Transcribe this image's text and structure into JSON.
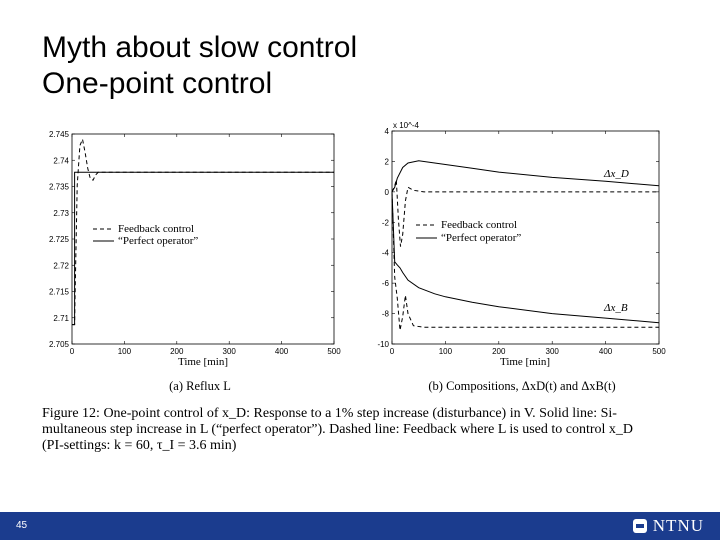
{
  "slide": {
    "title_line1": "Myth about slow control",
    "title_line2": "One-point control",
    "page_number": "45",
    "logo_text": "NTNU"
  },
  "figure": {
    "caption_line1": "Figure 12:  One-point control of x_D:  Response to a 1% step increase (disturbance) in V.  Solid line:  Si-",
    "caption_line2": "multaneous step increase in L (“perfect operator”).  Dashed line: Feedback where L is used to control x_D",
    "caption_line3": "(PI-settings: k = 60, τ_I = 3.6 min)"
  },
  "chart_data": [
    {
      "type": "line",
      "subtitle": "(a) Reflux L",
      "xlabel": "Time [min]",
      "ylabel": "",
      "xlim": [
        0,
        500
      ],
      "ylim": [
        2.705,
        2.745
      ],
      "xticks": [
        "0",
        "100",
        "200",
        "300",
        "400",
        "500"
      ],
      "yticks": [
        "2.705",
        "2.71",
        "2.715",
        "2.72",
        "2.725",
        "2.73",
        "2.735",
        "2.74",
        "2.745"
      ],
      "legend": [
        "Feedback control",
        "“Perfect operator”"
      ],
      "annotations": [],
      "series": [
        {
          "name": "Feedback control",
          "style": "dashed",
          "x": [
            0,
            5,
            5.5,
            10,
            15,
            20,
            25,
            30,
            35,
            40,
            45,
            50,
            60,
            80,
            100,
            500
          ],
          "y": [
            2.7087,
            2.7087,
            2.7125,
            2.7352,
            2.7428,
            2.744,
            2.7415,
            2.7385,
            2.7365,
            2.7362,
            2.7372,
            2.7377,
            2.7377,
            2.7377,
            2.7377,
            2.7377
          ]
        },
        {
          "name": "“Perfect operator”",
          "style": "solid",
          "x": [
            0,
            5,
            5.01,
            500
          ],
          "y": [
            2.7087,
            2.7087,
            2.7377,
            2.7377
          ]
        }
      ]
    },
    {
      "type": "line",
      "subtitle": "(b) Compositions, ΔxD(t) and ΔxB(t)",
      "xlabel": "Time [min]",
      "ylabel": "",
      "multiplier": "x 10^-4",
      "xlim": [
        0,
        500
      ],
      "ylim": [
        -10,
        4
      ],
      "xticks": [
        "0",
        "100",
        "200",
        "300",
        "400",
        "500"
      ],
      "yticks": [
        "4",
        "2",
        "0",
        "-2",
        "-4",
        "-6",
        "-8",
        "-10"
      ],
      "legend": [
        "Feedback control",
        "“Perfect operator”"
      ],
      "annotations": [
        "Δx_D",
        "Δx_B"
      ],
      "series": [
        {
          "name": "Δx_D perfect",
          "style": "solid",
          "x": [
            0,
            5,
            10,
            20,
            30,
            50,
            80,
            100,
            150,
            200,
            300,
            400,
            500
          ],
          "y": [
            0,
            0.3,
            0.9,
            1.6,
            1.9,
            2.05,
            1.9,
            1.8,
            1.55,
            1.3,
            0.95,
            0.7,
            0.4
          ]
        },
        {
          "name": "Δx_D feedback",
          "style": "dashed",
          "x": [
            0,
            5,
            8,
            12,
            16,
            20,
            25,
            30,
            40,
            60,
            100,
            500
          ],
          "y": [
            0,
            0.4,
            0.8,
            -1.8,
            -3.6,
            -2.8,
            -0.6,
            0.3,
            0.1,
            0,
            0,
            0
          ]
        },
        {
          "name": "Δx_B perfect",
          "style": "solid",
          "x": [
            0,
            5,
            10,
            15,
            20,
            30,
            50,
            80,
            100,
            150,
            200,
            300,
            400,
            500
          ],
          "y": [
            0,
            -4.6,
            -4.8,
            -5.0,
            -5.3,
            -5.8,
            -6.3,
            -6.7,
            -6.9,
            -7.25,
            -7.55,
            -8.0,
            -8.3,
            -8.6
          ]
        },
        {
          "name": "Δx_B feedback",
          "style": "dashed",
          "x": [
            0,
            5,
            10,
            15,
            20,
            25,
            30,
            40,
            60,
            100,
            200,
            500
          ],
          "y": [
            0,
            -5.6,
            -7.0,
            -9.1,
            -8.2,
            -6.8,
            -8.0,
            -8.8,
            -8.9,
            -8.9,
            -8.9,
            -8.9
          ]
        }
      ]
    }
  ]
}
